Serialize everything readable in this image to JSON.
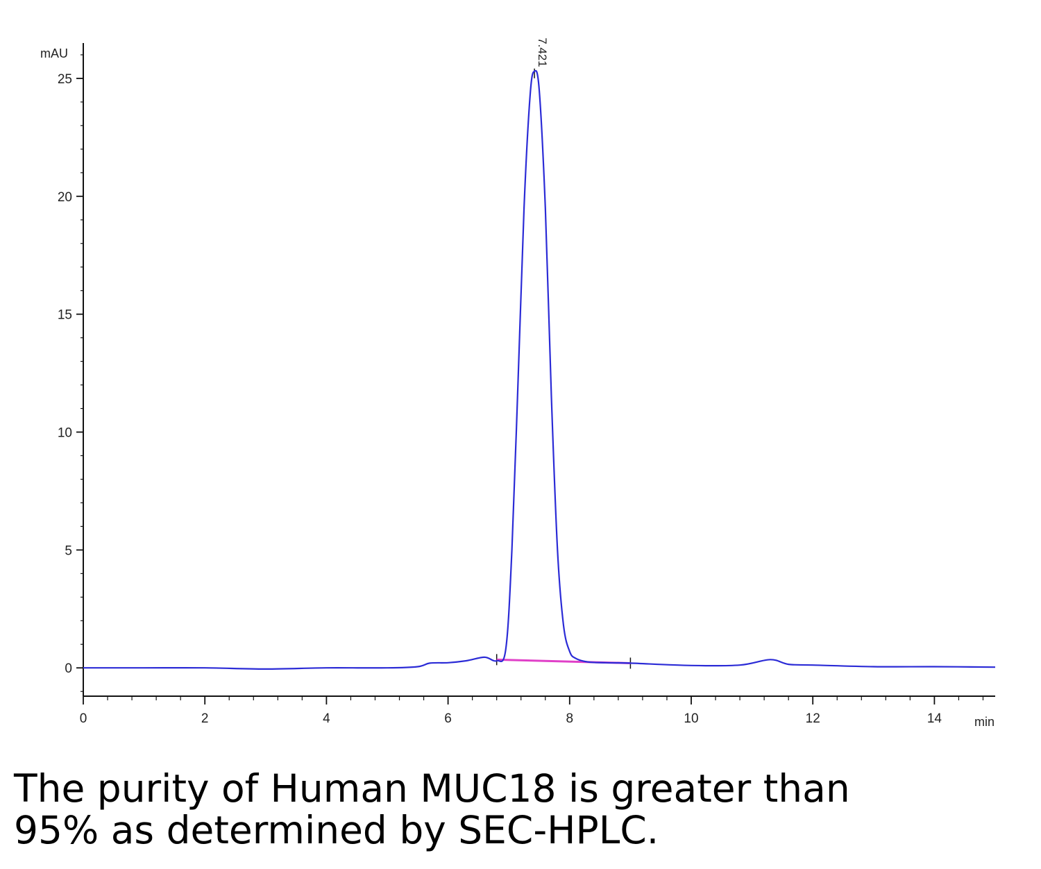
{
  "caption": {
    "line1": "The purity of Human MUC18 is greater than",
    "line2": "95% as determined by SEC-HPLC."
  },
  "chart_data": {
    "type": "line",
    "title": "",
    "y_unit": "mAU",
    "x_unit": "min",
    "xlim": [
      0,
      15
    ],
    "ylim": [
      -1.2,
      26.5
    ],
    "x_ticks": [
      0,
      2,
      4,
      6,
      8,
      10,
      12,
      14
    ],
    "y_ticks": [
      0,
      5,
      10,
      15,
      20,
      25
    ],
    "grid": false,
    "legend": "none",
    "peak": {
      "label": "7.421",
      "x": 7.421,
      "y": 25.3
    },
    "colors": {
      "signal": "#2b2bd6",
      "baseline": "#e040c8",
      "axis": "#111111"
    },
    "series": [
      {
        "x": [
          0,
          1,
          2,
          3,
          4,
          5,
          5.5,
          5.7,
          6,
          6.3,
          6.6,
          6.8,
          6.95,
          7.05,
          7.15,
          7.25,
          7.35,
          7.421,
          7.5,
          7.6,
          7.7,
          7.8,
          7.9,
          8.0,
          8.1,
          8.3,
          8.6,
          9,
          10,
          10.8,
          11.3,
          11.6,
          12,
          13,
          14,
          15
        ],
        "y": [
          0.0,
          0.0,
          0.0,
          -0.05,
          0.0,
          0.0,
          0.05,
          0.2,
          0.22,
          0.3,
          0.45,
          0.3,
          0.8,
          5.0,
          12.0,
          19.5,
          24.3,
          25.3,
          24.5,
          19.5,
          11.5,
          5.0,
          1.8,
          0.7,
          0.4,
          0.25,
          0.22,
          0.2,
          0.1,
          0.12,
          0.35,
          0.15,
          0.12,
          0.05,
          0.05,
          0.03
        ]
      }
    ],
    "integration_baseline": {
      "x": [
        6.8,
        9.0
      ],
      "y": [
        0.35,
        0.2
      ]
    }
  }
}
